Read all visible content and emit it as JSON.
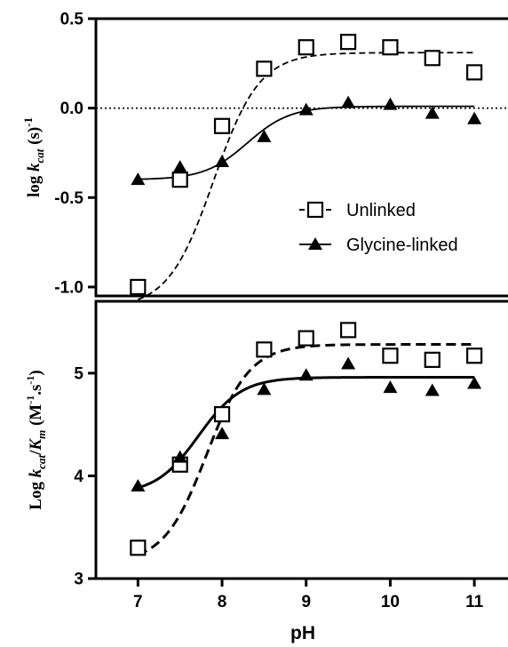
{
  "chart_data": [
    {
      "type": "scatter",
      "panel": "top",
      "ylabel": {
        "pre": "log ",
        "k": "k",
        "sub": "cat",
        "post": " (s)",
        "sup": "-1"
      },
      "xlim": [
        6.5,
        11.4
      ],
      "ylim": [
        -1.05,
        0.5
      ],
      "yticks": [
        0.5,
        0.0,
        -0.5,
        -1.0
      ],
      "ytick_labels": [
        "0.5",
        "0.0",
        "-0.5",
        "-1.0"
      ],
      "reference_line": {
        "y": 0.0,
        "style": "dotted"
      },
      "legend": {
        "position": "right-center"
      },
      "series": [
        {
          "name": "Unlinked",
          "marker": "open-square",
          "line": "dashed",
          "x": [
            7,
            7.5,
            8,
            8.5,
            9,
            9.5,
            10,
            10.5,
            11
          ],
          "y": [
            -1.0,
            -0.4,
            -0.1,
            0.22,
            0.34,
            0.37,
            0.34,
            0.28,
            0.2
          ],
          "fit": {
            "bottom": -1.12,
            "top": 0.31,
            "pKa": 7.9,
            "hill": 1.6
          }
        },
        {
          "name": "Glycine-linked",
          "marker": "filled-triangle",
          "line": "solid",
          "x": [
            7,
            7.5,
            8,
            8.5,
            9,
            9.5,
            10,
            10.5,
            11
          ],
          "y": [
            -0.4,
            -0.33,
            -0.3,
            -0.16,
            -0.01,
            0.03,
            0.02,
            -0.03,
            -0.06
          ],
          "fit": {
            "bottom": -0.4,
            "top": 0.01,
            "pKa": 8.3,
            "hill": 1.7
          }
        }
      ]
    },
    {
      "type": "scatter",
      "panel": "bottom",
      "ylabel": {
        "pre": "Log ",
        "k": "k",
        "sub": "cat",
        "slash": "/",
        "K": "K",
        "sub2": "m",
        "unit_pre": " (M",
        "sup1": "-1",
        "unit_mid": ".s",
        "sup2": "-1",
        "unit_post": ")"
      },
      "xlabel": "pH",
      "xlim": [
        6.5,
        11.4
      ],
      "ylim": [
        3,
        5.7
      ],
      "xticks": [
        7,
        8,
        9,
        10,
        11
      ],
      "xtick_labels": [
        "7",
        "8",
        "9",
        "10",
        "11"
      ],
      "yticks": [
        3,
        4,
        5
      ],
      "ytick_labels": [
        "3",
        "4",
        "5"
      ],
      "series": [
        {
          "name": "Unlinked",
          "marker": "open-square",
          "line": "dashed",
          "x": [
            7,
            7.5,
            8,
            8.5,
            9,
            9.5,
            10,
            10.5,
            11
          ],
          "y": [
            3.3,
            4.11,
            4.6,
            5.23,
            5.34,
            5.42,
            5.17,
            5.13,
            5.17
          ],
          "fit": {
            "bottom": 3.15,
            "top": 5.28,
            "pKa": 7.82,
            "hill": 1.7
          }
        },
        {
          "name": "Glycine-linked",
          "marker": "filled-triangle",
          "line": "solid",
          "x": [
            7,
            7.5,
            8,
            8.5,
            9,
            9.5,
            10,
            10.5,
            11
          ],
          "y": [
            3.9,
            4.18,
            4.41,
            4.84,
            4.98,
            5.09,
            4.86,
            4.83,
            4.9
          ],
          "fit": {
            "bottom": 3.82,
            "top": 4.96,
            "pKa": 7.72,
            "hill": 1.7
          }
        }
      ]
    }
  ]
}
